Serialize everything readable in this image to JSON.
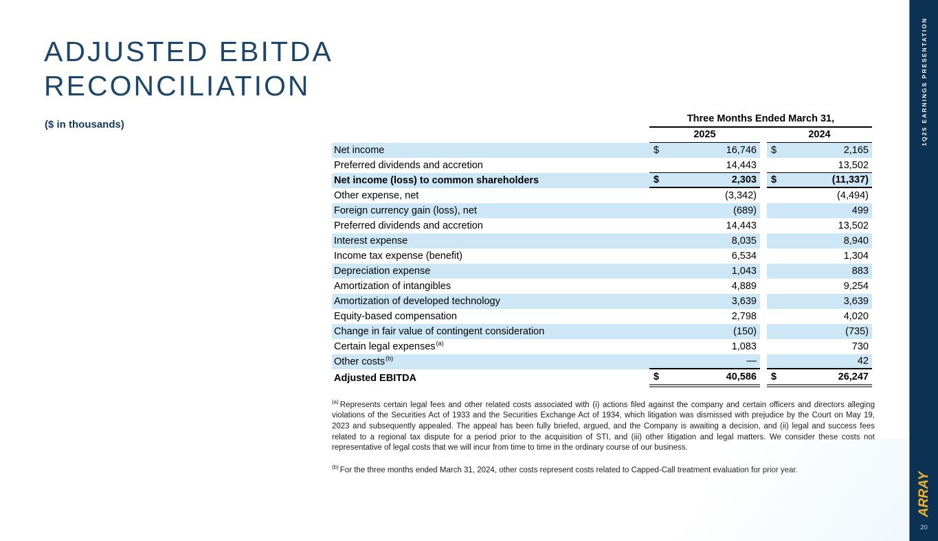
{
  "slide": {
    "title_line1": "ADJUSTED EBITDA",
    "title_line2": "RECONCILIATION",
    "subtitle": "($ in thousands)",
    "page_number": "20"
  },
  "sidebar": {
    "vertical_label": "1Q25 EARNINGS PRESENTATION",
    "logo_text": "ARRAY"
  },
  "colors": {
    "sidebar_navy": "#0c3253",
    "title_navy": "#1d4668",
    "row_shade_blue": "#cde7f6",
    "logo_gold": "#f3b229"
  },
  "table": {
    "header_group": "Three Months Ended March 31,",
    "columns": [
      "2025",
      "2024"
    ],
    "dollar_symbol": "$",
    "rows": [
      {
        "label": "Net income",
        "sup": "",
        "y2025": "16,746",
        "y2024": "2,165",
        "dollar": true,
        "bold": false,
        "shaded": true,
        "border": "none",
        "total": false
      },
      {
        "label": "Preferred dividends and accretion",
        "sup": "",
        "y2025": "14,443",
        "y2024": "13,502",
        "dollar": false,
        "bold": false,
        "shaded": false,
        "border": "b1",
        "total": false
      },
      {
        "label": "Net income (loss) to common shareholders",
        "sup": "",
        "y2025": "2,303",
        "y2024": "(11,337)",
        "dollar": true,
        "bold": true,
        "shaded": true,
        "border": "b2",
        "total": false
      },
      {
        "label": "Other expense, net",
        "sup": "",
        "y2025": "(3,342)",
        "y2024": "(4,494)",
        "dollar": false,
        "bold": false,
        "shaded": false,
        "border": "none",
        "total": false
      },
      {
        "label": "Foreign currency gain (loss), net",
        "sup": "",
        "y2025": "(689)",
        "y2024": "499",
        "dollar": false,
        "bold": false,
        "shaded": true,
        "border": "none",
        "total": false
      },
      {
        "label": "Preferred dividends and accretion",
        "sup": "",
        "y2025": "14,443",
        "y2024": "13,502",
        "dollar": false,
        "bold": false,
        "shaded": false,
        "border": "none",
        "total": false
      },
      {
        "label": "Interest expense",
        "sup": "",
        "y2025": "8,035",
        "y2024": "8,940",
        "dollar": false,
        "bold": false,
        "shaded": true,
        "border": "none",
        "total": false
      },
      {
        "label": "Income tax expense (benefit)",
        "sup": "",
        "y2025": "6,534",
        "y2024": "1,304",
        "dollar": false,
        "bold": false,
        "shaded": false,
        "border": "none",
        "total": false
      },
      {
        "label": "Depreciation expense",
        "sup": "",
        "y2025": "1,043",
        "y2024": "883",
        "dollar": false,
        "bold": false,
        "shaded": true,
        "border": "none",
        "total": false
      },
      {
        "label": "Amortization of intangibles",
        "sup": "",
        "y2025": "4,889",
        "y2024": "9,254",
        "dollar": false,
        "bold": false,
        "shaded": false,
        "border": "none",
        "total": false
      },
      {
        "label": "Amortization of developed technology",
        "sup": "",
        "y2025": "3,639",
        "y2024": "3,639",
        "dollar": false,
        "bold": false,
        "shaded": true,
        "border": "none",
        "total": false
      },
      {
        "label": "Equity-based compensation",
        "sup": "",
        "y2025": "2,798",
        "y2024": "4,020",
        "dollar": false,
        "bold": false,
        "shaded": false,
        "border": "none",
        "total": false
      },
      {
        "label": "Change in fair value of contingent consideration",
        "sup": "",
        "y2025": "(150)",
        "y2024": "(735)",
        "dollar": false,
        "bold": false,
        "shaded": true,
        "border": "none",
        "total": false
      },
      {
        "label": "Certain legal expenses",
        "sup": "(a)",
        "y2025": "1,083",
        "y2024": "730",
        "dollar": false,
        "bold": false,
        "shaded": false,
        "border": "none",
        "total": false
      },
      {
        "label": "Other costs",
        "sup": "(b)",
        "y2025": "—",
        "y2024": "42",
        "dollar": false,
        "bold": false,
        "shaded": true,
        "border": "b2",
        "total": false
      },
      {
        "label": "Adjusted EBITDA",
        "sup": "",
        "y2025": "40,586",
        "y2024": "26,247",
        "dollar": true,
        "bold": true,
        "shaded": false,
        "border": "bdbl",
        "total": true
      }
    ]
  },
  "footnotes": [
    {
      "marker": "(a)",
      "text": "Represents certain legal fees and other related costs associated with (i) actions filed against the company and certain officers and directors alleging violations of the Securities Act of 1933 and the Securities Exchange Act of 1934, which litigation was dismissed with prejudice by the Court on May 19, 2023 and subsequently appealed. The appeal has been fully briefed, argued, and the Company is awaiting a decision, and (ii) legal and success fees related to a regional tax dispute for a period prior to the acquisition of STI, and (iii) other litigation and legal matters. We consider these costs not representative of legal costs that we will incur from time to time in the ordinary course of our business."
    },
    {
      "marker": "(b)",
      "text": "For the three months ended March 31, 2024, other costs represent costs related to Capped-Call treatment evaluation for prior year."
    }
  ]
}
